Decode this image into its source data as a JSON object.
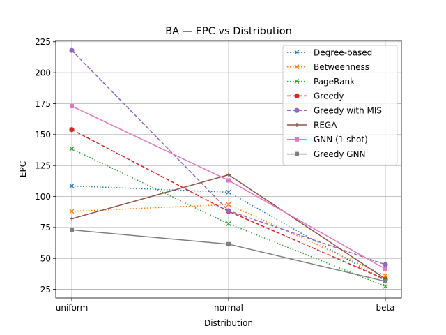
{
  "chart_data": {
    "type": "line",
    "title": "BA — EPC vs Distribution",
    "xlabel": "Distribution",
    "ylabel": "EPC",
    "categories": [
      "uniform",
      "normal",
      "beta"
    ],
    "ylim": [
      18,
      226
    ],
    "yticks": [
      25,
      50,
      75,
      100,
      125,
      150,
      175,
      200,
      225
    ],
    "grid": true,
    "legend_position": "top-right",
    "series": [
      {
        "name": "Degree-based",
        "values": [
          108.5,
          103.5,
          32.0
        ],
        "color": "#1f77b4",
        "linestyle": "dotted",
        "marker": "x"
      },
      {
        "name": "Betweenness",
        "values": [
          88.0,
          93.5,
          36.0
        ],
        "color": "#ff7f0e",
        "linestyle": "dotted",
        "marker": "x"
      },
      {
        "name": "PageRank",
        "values": [
          138.5,
          78.0,
          27.5
        ],
        "color": "#2ca02c",
        "linestyle": "dotted",
        "marker": "x"
      },
      {
        "name": "Greedy",
        "values": [
          154.0,
          88.0,
          33.0
        ],
        "color": "#d62728",
        "linestyle": "dashed",
        "marker": "circle"
      },
      {
        "name": "Greedy with MIS",
        "values": [
          218.0,
          88.5,
          45.0
        ],
        "color": "#9467bd",
        "linestyle": "dashed",
        "marker": "circle"
      },
      {
        "name": "REGA",
        "values": [
          82.0,
          117.5,
          33.5
        ],
        "color": "#8c564b",
        "linestyle": "solid",
        "marker": "plus"
      },
      {
        "name": "GNN (1 shot)",
        "values": [
          173.0,
          113.0,
          41.5
        ],
        "color": "#e377c2",
        "linestyle": "solid",
        "marker": "square"
      },
      {
        "name": "Greedy GNN",
        "values": [
          73.0,
          61.5,
          31.5
        ],
        "color": "#7f7f7f",
        "linestyle": "solid",
        "marker": "square"
      }
    ]
  }
}
